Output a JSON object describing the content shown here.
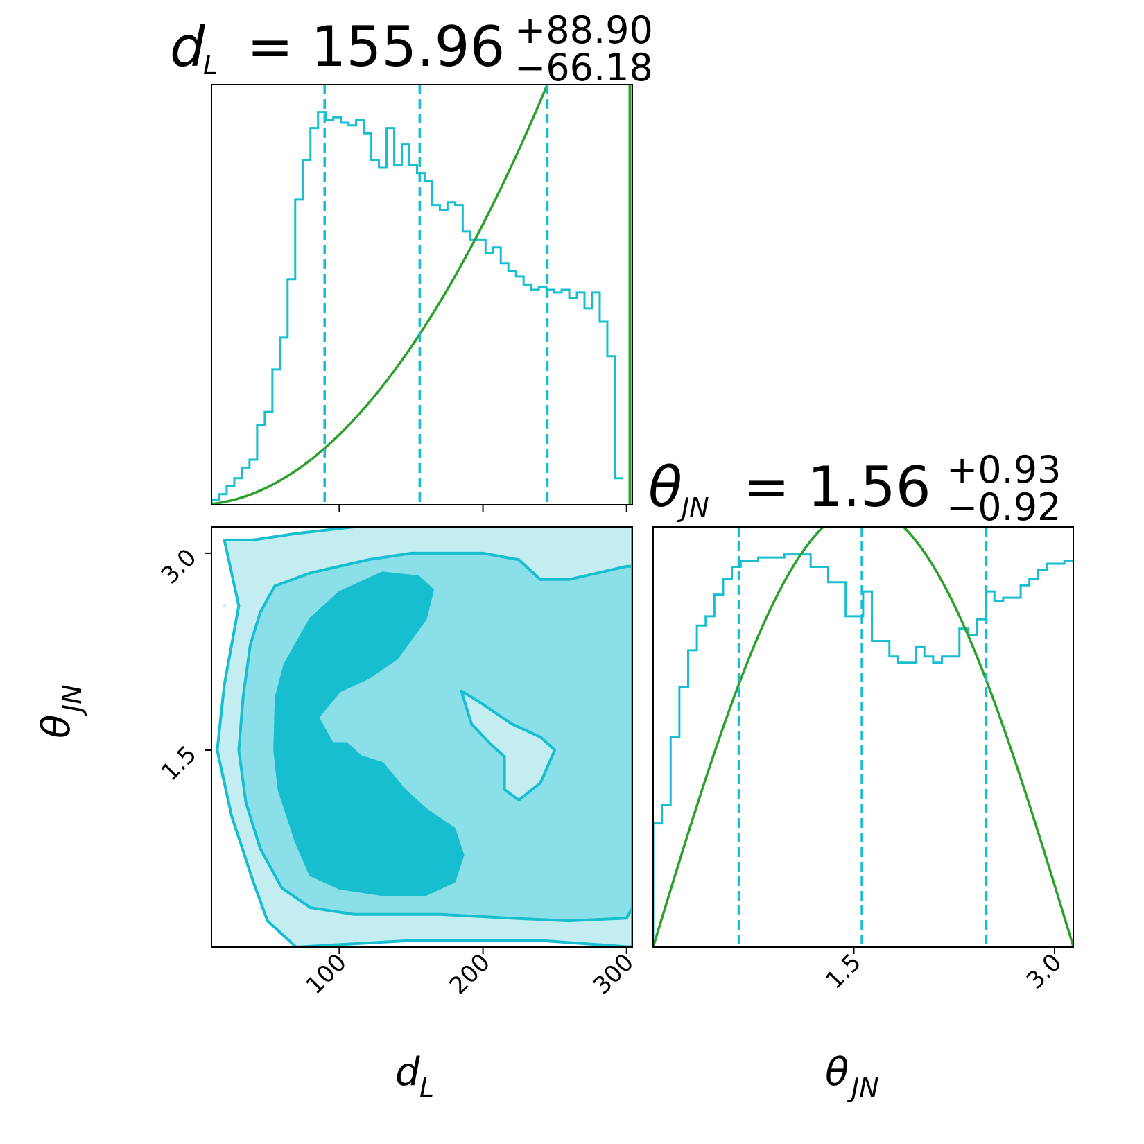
{
  "colors": {
    "posterior": "#17becf",
    "contour_fills": [
      "#c4edf2",
      "#8bdfe8",
      "#17becf"
    ],
    "prior": "#2ca02c",
    "frame": "#000000"
  },
  "titles": {
    "dL": {
      "symbol": "d",
      "sub": "L",
      "eq": "= 155.96",
      "plus": "+88.90",
      "minus": "−66.18"
    },
    "theta": {
      "symbol": "θ",
      "sub": "JN",
      "eq": "= 1.56",
      "plus": "+0.93",
      "minus": "−0.92"
    }
  },
  "axis_labels": {
    "x_dL": {
      "symbol": "d",
      "sub": "L"
    },
    "x_theta": {
      "symbol": "θ",
      "sub": "JN"
    },
    "y_theta": {
      "symbol": "θ",
      "sub": "JN"
    }
  },
  "chart_data": [
    {
      "type": "histogram",
      "panel": "dL-marginal",
      "parameter": "d_L",
      "xlim": [
        11,
        304
      ],
      "bin_edges_start": 11,
      "bin_width": 5.3,
      "counts": [
        2,
        4,
        7,
        10,
        14,
        17,
        30,
        35,
        51,
        63,
        85,
        115,
        130,
        142,
        148,
        145,
        146,
        144,
        143,
        145,
        140,
        130,
        127,
        142,
        128,
        136,
        128,
        125,
        122,
        113,
        111,
        114,
        113,
        103,
        100,
        100,
        95,
        97,
        91,
        88,
        86,
        83,
        81,
        82,
        81,
        80,
        81,
        78,
        80,
        74,
        80,
        69,
        56,
        10
      ],
      "quantile_lines": [
        89.78,
        155.96,
        244.86
      ],
      "prior_curve": {
        "form": "power",
        "exponent": 2,
        "x": [
          11,
          304
        ],
        "ymax_at": 304
      }
    },
    {
      "type": "histogram",
      "panel": "theta-marginal",
      "parameter": "theta_JN",
      "xlim": [
        0,
        3.14
      ],
      "bin_edges_start": 0,
      "bin_width": 0.0654,
      "counts": [
        40,
        46,
        68,
        84,
        96,
        104,
        107,
        114,
        119,
        123,
        125,
        125,
        126,
        126,
        126,
        127,
        127,
        127,
        123,
        123,
        118,
        118,
        107,
        107,
        115,
        99,
        99,
        94,
        92,
        92,
        97,
        94,
        92,
        94,
        94,
        103,
        101,
        106,
        115,
        112,
        113,
        113,
        117,
        119,
        122,
        124,
        124,
        125,
        125,
        120,
        108,
        96,
        84,
        68,
        52,
        2
      ],
      "quantile_lines": [
        0.64,
        1.56,
        2.49
      ],
      "prior_curve": {
        "form": "sine",
        "x": [
          0,
          3.14
        ]
      }
    },
    {
      "type": "contour",
      "panel": "dL-theta-2d",
      "x_parameter": "d_L",
      "y_parameter": "theta_JN",
      "xlim": [
        11,
        304
      ],
      "ylim": [
        0.0,
        3.2
      ],
      "levels": [
        "outer",
        "middle",
        "inner"
      ],
      "regions": {
        "outer": [
          [
            20,
            3.1
          ],
          [
            40,
            3.1
          ],
          [
            70,
            3.15
          ],
          [
            110,
            3.2
          ],
          [
            140,
            3.2
          ],
          [
            180,
            3.2
          ],
          [
            240,
            3.2
          ],
          [
            300,
            3.2
          ],
          [
            304,
            3.2
          ],
          [
            304,
            0.0
          ],
          [
            240,
            0.05
          ],
          [
            150,
            0.05
          ],
          [
            70,
            0.0
          ],
          [
            50,
            0.2
          ],
          [
            40,
            0.5
          ],
          [
            25,
            1.0
          ],
          [
            15,
            1.5
          ],
          [
            20,
            2.0
          ],
          [
            30,
            2.6
          ]
        ],
        "middle": [
          [
            55,
            2.75
          ],
          [
            80,
            2.85
          ],
          [
            120,
            2.95
          ],
          [
            150,
            3.0
          ],
          [
            200,
            3.0
          ],
          [
            225,
            2.95
          ],
          [
            240,
            2.8
          ],
          [
            260,
            2.8
          ],
          [
            280,
            2.85
          ],
          [
            300,
            2.9
          ],
          [
            304,
            2.9
          ],
          [
            304,
            0.3
          ],
          [
            300,
            0.22
          ],
          [
            260,
            0.2
          ],
          [
            220,
            0.22
          ],
          [
            170,
            0.25
          ],
          [
            110,
            0.25
          ],
          [
            80,
            0.3
          ],
          [
            60,
            0.45
          ],
          [
            45,
            0.75
          ],
          [
            35,
            1.1
          ],
          [
            30,
            1.5
          ],
          [
            33,
            1.9
          ],
          [
            38,
            2.3
          ],
          [
            45,
            2.55
          ]
        ],
        "inner": [
          [
            62,
            2.15
          ],
          [
            80,
            2.5
          ],
          [
            100,
            2.7
          ],
          [
            130,
            2.85
          ],
          [
            155,
            2.82
          ],
          [
            165,
            2.72
          ],
          [
            160,
            2.5
          ],
          [
            150,
            2.35
          ],
          [
            140,
            2.2
          ],
          [
            120,
            2.05
          ],
          [
            100,
            1.95
          ],
          [
            85,
            1.75
          ],
          [
            95,
            1.55
          ],
          [
            105,
            1.55
          ],
          [
            115,
            1.45
          ],
          [
            130,
            1.4
          ],
          [
            145,
            1.2
          ],
          [
            160,
            1.05
          ],
          [
            180,
            0.9
          ],
          [
            186,
            0.7
          ],
          [
            180,
            0.5
          ],
          [
            160,
            0.4
          ],
          [
            130,
            0.4
          ],
          [
            100,
            0.45
          ],
          [
            80,
            0.55
          ],
          [
            70,
            0.8
          ],
          [
            58,
            1.2
          ],
          [
            55,
            1.5
          ],
          [
            56,
            1.9
          ]
        ]
      },
      "inner_hole": [
        [
          185,
          1.95
        ],
        [
          200,
          1.85
        ],
        [
          220,
          1.7
        ],
        [
          240,
          1.6
        ],
        [
          250,
          1.5
        ],
        [
          240,
          1.25
        ],
        [
          225,
          1.12
        ],
        [
          215,
          1.2
        ],
        [
          215,
          1.45
        ],
        [
          205,
          1.55
        ],
        [
          192,
          1.7
        ]
      ],
      "scatter_points": [
        [
          20,
          2.6
        ],
        [
          25,
          2.3
        ],
        [
          30,
          2.5
        ],
        [
          22,
          2.0
        ],
        [
          28,
          1.8
        ],
        [
          18,
          1.3
        ],
        [
          25,
          1.1
        ],
        [
          30,
          0.9
        ],
        [
          35,
          0.7
        ],
        [
          40,
          0.5
        ],
        [
          45,
          0.3
        ],
        [
          50,
          0.2
        ],
        [
          60,
          0.1
        ],
        [
          70,
          0.05
        ],
        [
          35,
          2.8
        ],
        [
          45,
          2.9
        ],
        [
          70,
          3.1
        ],
        [
          80,
          3.15
        ]
      ]
    }
  ],
  "ticks": {
    "dL": [
      {
        "v": 100,
        "label": "100"
      },
      {
        "v": 200,
        "label": "200"
      },
      {
        "v": 300,
        "label": "300"
      }
    ],
    "theta_x": [
      {
        "v": 1.5,
        "label": "1.5"
      },
      {
        "v": 3.0,
        "label": "3.0"
      }
    ],
    "theta_y": [
      {
        "v": 1.5,
        "label": "1.5"
      },
      {
        "v": 3.0,
        "label": "3.0"
      }
    ]
  }
}
